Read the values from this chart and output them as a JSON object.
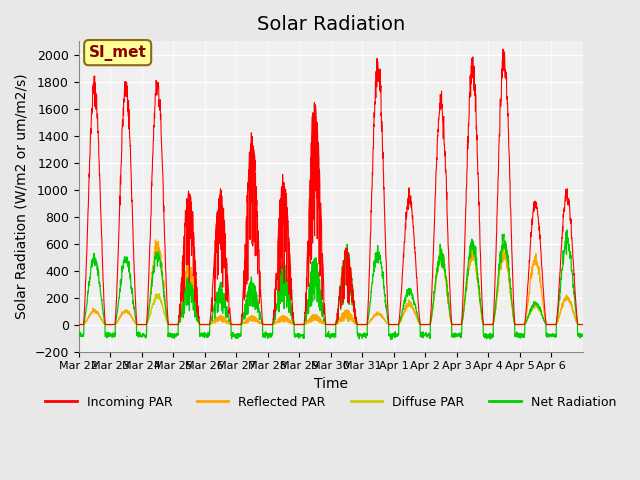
{
  "title": "Solar Radiation",
  "ylabel": "Solar Radiation (W/m2 or um/m2/s)",
  "xlabel": "Time",
  "ylim": [
    -200,
    2100
  ],
  "yticks": [
    -200,
    0,
    200,
    400,
    600,
    800,
    1000,
    1200,
    1400,
    1600,
    1800,
    2000
  ],
  "date_labels": [
    "Mar 22",
    "Mar 23",
    "Mar 24",
    "Mar 25",
    "Mar 26",
    "Mar 27",
    "Mar 28",
    "Mar 29",
    "Mar 30",
    "Mar 31",
    "Apr 1",
    "Apr 2",
    "Apr 3",
    "Apr 4",
    "Apr 5",
    "Apr 6"
  ],
  "annotation": "SI_met",
  "annotation_color": "#8B0000",
  "annotation_bg": "#FFFF99",
  "annotation_border": "#8B6914",
  "colors": {
    "incoming": "#FF0000",
    "reflected": "#FFA500",
    "diffuse": "#CCCC00",
    "net": "#00CC00"
  },
  "legend_labels": [
    "Incoming PAR",
    "Reflected PAR",
    "Diffuse PAR",
    "Net Radiation"
  ],
  "background_color": "#E8E8E8",
  "plot_bg": "#F0F0F0",
  "n_days": 16,
  "peaks_incoming": [
    1760,
    1760,
    1780,
    960,
    950,
    1350,
    1060,
    1600,
    540,
    1900,
    930,
    1640,
    1900,
    1950,
    900,
    960
  ],
  "peaks_reflected": [
    100,
    100,
    580,
    420,
    60,
    60,
    60,
    70,
    100,
    80,
    150,
    500,
    530,
    530,
    480,
    200
  ],
  "peaks_diffuse": [
    100,
    100,
    210,
    420,
    60,
    60,
    60,
    70,
    80,
    80,
    150,
    500,
    530,
    530,
    140,
    200
  ],
  "peaks_net": [
    490,
    480,
    510,
    310,
    270,
    310,
    420,
    460,
    530,
    530,
    250,
    510,
    590,
    610,
    160,
    610
  ],
  "night_net": -80,
  "title_fontsize": 14,
  "label_fontsize": 10,
  "tick_fontsize": 9
}
